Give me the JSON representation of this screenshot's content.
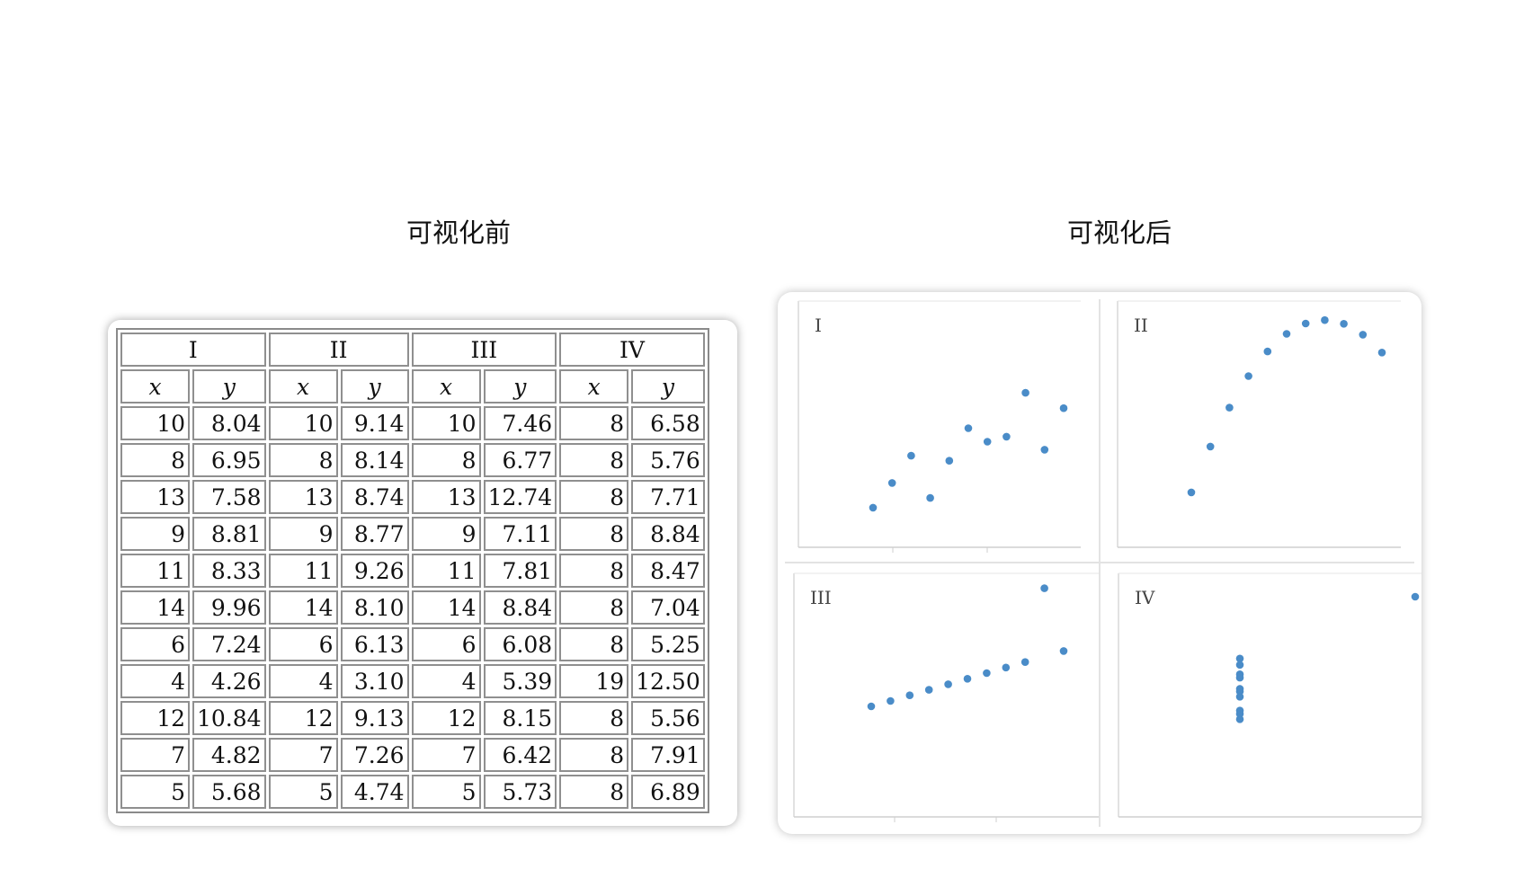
{
  "headings": {
    "before": "可视化前",
    "after": "可视化后"
  },
  "table": {
    "group_headers": [
      "I",
      "II",
      "III",
      "IV"
    ],
    "var_headers": [
      "x",
      "y",
      "x",
      "y",
      "x",
      "y",
      "x",
      "y"
    ],
    "rows": [
      [
        "10",
        "8.04",
        "10",
        "9.14",
        "10",
        "7.46",
        "8",
        "6.58"
      ],
      [
        "8",
        "6.95",
        "8",
        "8.14",
        "8",
        "6.77",
        "8",
        "5.76"
      ],
      [
        "13",
        "7.58",
        "13",
        "8.74",
        "13",
        "12.74",
        "8",
        "7.71"
      ],
      [
        "9",
        "8.81",
        "9",
        "8.77",
        "9",
        "7.11",
        "8",
        "8.84"
      ],
      [
        "11",
        "8.33",
        "11",
        "9.26",
        "11",
        "7.81",
        "8",
        "8.47"
      ],
      [
        "14",
        "9.96",
        "14",
        "8.10",
        "14",
        "8.84",
        "8",
        "7.04"
      ],
      [
        "6",
        "7.24",
        "6",
        "6.13",
        "6",
        "6.08",
        "8",
        "5.25"
      ],
      [
        "4",
        "4.26",
        "4",
        "3.10",
        "4",
        "5.39",
        "19",
        "12.50"
      ],
      [
        "12",
        "10.84",
        "12",
        "9.13",
        "12",
        "8.15",
        "8",
        "5.56"
      ],
      [
        "7",
        "4.82",
        "7",
        "7.26",
        "7",
        "6.42",
        "8",
        "7.91"
      ],
      [
        "5",
        "5.68",
        "5",
        "4.74",
        "5",
        "5.73",
        "8",
        "6.89"
      ]
    ]
  },
  "chart_data": [
    {
      "type": "scatter",
      "title": "I",
      "x": [
        10,
        8,
        13,
        9,
        11,
        14,
        6,
        4,
        12,
        7,
        5
      ],
      "y": [
        8.04,
        6.95,
        7.58,
        8.81,
        8.33,
        9.96,
        7.24,
        4.26,
        10.84,
        4.82,
        5.68
      ],
      "color": "#4a8cc8"
    },
    {
      "type": "scatter",
      "title": "II",
      "x": [
        10,
        8,
        13,
        9,
        11,
        14,
        6,
        4,
        12,
        7,
        5
      ],
      "y": [
        9.14,
        8.14,
        8.74,
        8.77,
        9.26,
        8.1,
        6.13,
        3.1,
        9.13,
        7.26,
        4.74
      ],
      "color": "#4a8cc8"
    },
    {
      "type": "scatter",
      "title": "III",
      "x": [
        10,
        8,
        13,
        9,
        11,
        14,
        6,
        4,
        12,
        7,
        5
      ],
      "y": [
        7.46,
        6.77,
        12.74,
        7.11,
        7.81,
        8.84,
        6.08,
        5.39,
        8.15,
        6.42,
        5.73
      ],
      "color": "#4a8cc8"
    },
    {
      "type": "scatter",
      "title": "IV",
      "x": [
        8,
        8,
        8,
        8,
        8,
        8,
        8,
        19,
        8,
        8,
        8
      ],
      "y": [
        6.58,
        5.76,
        7.71,
        8.84,
        8.47,
        7.04,
        5.25,
        12.5,
        5.56,
        7.91,
        6.89
      ],
      "color": "#4a8cc8"
    }
  ]
}
